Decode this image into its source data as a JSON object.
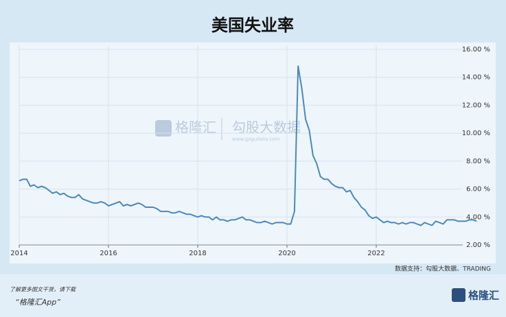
{
  "chart_data": {
    "type": "line",
    "title": "美国失业率",
    "source": "数据支持：勾股大数据、TRADING",
    "watermark": {
      "brand": "格隆汇",
      "partner": "勾股大数据",
      "site": "www.gogudata.com"
    },
    "footer": {
      "line1": "了解更多图文干货，请下载",
      "line2": "“格隆汇App”",
      "logo": "格隆汇"
    },
    "x": [
      2014,
      2014.083,
      2014.167,
      2014.25,
      2014.333,
      2014.417,
      2014.5,
      2014.583,
      2014.667,
      2014.75,
      2014.833,
      2014.917,
      2015,
      2015.083,
      2015.167,
      2015.25,
      2015.333,
      2015.417,
      2015.5,
      2015.583,
      2015.667,
      2015.75,
      2015.833,
      2015.917,
      2016,
      2016.083,
      2016.167,
      2016.25,
      2016.333,
      2016.417,
      2016.5,
      2016.583,
      2016.667,
      2016.75,
      2016.833,
      2016.917,
      2017,
      2017.083,
      2017.167,
      2017.25,
      2017.333,
      2017.417,
      2017.5,
      2017.583,
      2017.667,
      2017.75,
      2017.833,
      2017.917,
      2018,
      2018.083,
      2018.167,
      2018.25,
      2018.333,
      2018.417,
      2018.5,
      2018.583,
      2018.667,
      2018.75,
      2018.833,
      2018.917,
      2019,
      2019.083,
      2019.167,
      2019.25,
      2019.333,
      2019.417,
      2019.5,
      2019.583,
      2019.667,
      2019.75,
      2019.833,
      2019.917,
      2020,
      2020.083,
      2020.167,
      2020.25,
      2020.333,
      2020.417,
      2020.5,
      2020.583,
      2020.667,
      2020.75,
      2020.833,
      2020.917,
      2021,
      2021.083,
      2021.167,
      2021.25,
      2021.333,
      2021.417,
      2021.5,
      2021.583,
      2021.667,
      2021.75,
      2021.833,
      2021.917,
      2022,
      2022.083,
      2022.167,
      2022.25,
      2022.333,
      2022.417,
      2022.5,
      2022.583,
      2022.667,
      2022.75,
      2022.833,
      2022.917,
      2023,
      2023.083,
      2023.167,
      2023.25,
      2023.333,
      2023.417,
      2023.5,
      2023.583,
      2023.667,
      2023.75,
      2023.833,
      2023.917,
      2024,
      2024.083,
      2024.167,
      2024.25
    ],
    "series": [
      {
        "name": "美国失业率",
        "color": "#4b88ba",
        "values": [
          6.6,
          6.7,
          6.7,
          6.2,
          6.3,
          6.1,
          6.2,
          6.1,
          5.9,
          5.7,
          5.8,
          5.6,
          5.7,
          5.5,
          5.4,
          5.4,
          5.6,
          5.3,
          5.2,
          5.1,
          5.0,
          5.0,
          5.1,
          5.0,
          4.8,
          4.9,
          5.0,
          5.1,
          4.8,
          4.9,
          4.8,
          4.9,
          5.0,
          4.9,
          4.7,
          4.7,
          4.7,
          4.6,
          4.4,
          4.4,
          4.4,
          4.3,
          4.3,
          4.4,
          4.3,
          4.2,
          4.2,
          4.1,
          4.0,
          4.1,
          4.0,
          4.0,
          3.8,
          4.0,
          3.8,
          3.8,
          3.7,
          3.8,
          3.8,
          3.9,
          4.0,
          3.8,
          3.8,
          3.7,
          3.6,
          3.6,
          3.7,
          3.6,
          3.5,
          3.6,
          3.6,
          3.6,
          3.5,
          3.5,
          4.4,
          14.8,
          13.2,
          11.0,
          10.2,
          8.4,
          7.8,
          6.9,
          6.7,
          6.7,
          6.4,
          6.2,
          6.1,
          6.1,
          5.8,
          5.9,
          5.4,
          5.1,
          4.7,
          4.5,
          4.1,
          3.9,
          4.0,
          3.8,
          3.6,
          3.7,
          3.6,
          3.6,
          3.5,
          3.6,
          3.5,
          3.6,
          3.6,
          3.5,
          3.4,
          3.6,
          3.5,
          3.4,
          3.7,
          3.6,
          3.5,
          3.8,
          3.8,
          3.8,
          3.7,
          3.7,
          3.7,
          3.8,
          3.8,
          3.7
        ]
      }
    ],
    "xlim": [
      2014,
      2024.4
    ],
    "xticks": [
      2014,
      2016,
      2018,
      2020,
      2022
    ],
    "ylim": [
      2,
      16
    ],
    "yticks": [
      {
        "value": 2,
        "label": "2.00 %"
      },
      {
        "value": 4,
        "label": "4.00 %"
      },
      {
        "value": 6,
        "label": "6.00 %"
      },
      {
        "value": 8,
        "label": "8.00 %"
      },
      {
        "value": 10,
        "label": "10.00 %"
      },
      {
        "value": 12,
        "label": "12.00 %"
      },
      {
        "value": 14,
        "label": "14.00 %"
      },
      {
        "value": 16,
        "label": "16.00 %"
      }
    ],
    "grid": true
  }
}
